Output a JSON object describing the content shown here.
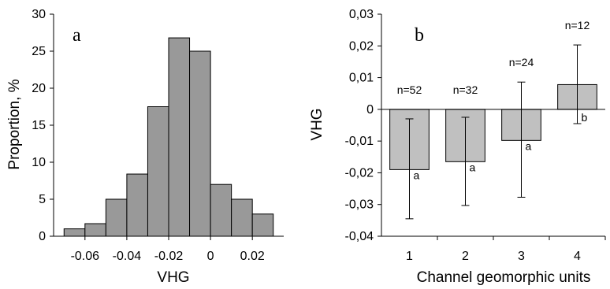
{
  "chart_data": [
    {
      "panel_label": "a",
      "type": "bar",
      "subtype": "histogram",
      "xlabel": "VHG",
      "ylabel": "Proportion, %",
      "xlim": [
        -0.075,
        0.035
      ],
      "ylim": [
        0,
        30
      ],
      "xticks": [
        -0.06,
        -0.04,
        -0.02,
        0,
        0.02
      ],
      "xtick_labels": [
        "-0.06",
        "-0.04",
        "-0.02",
        "0",
        "0.02"
      ],
      "yticks": [
        0,
        5,
        10,
        15,
        20,
        25,
        30
      ],
      "ytick_labels": [
        "0",
        "5",
        "10",
        "15",
        "20",
        "25",
        "30"
      ],
      "bin_width": 0.01,
      "bins": [
        {
          "x0": -0.07,
          "x1": -0.06,
          "value": 1
        },
        {
          "x0": -0.06,
          "x1": -0.05,
          "value": 1.7
        },
        {
          "x0": -0.05,
          "x1": -0.04,
          "value": 5
        },
        {
          "x0": -0.04,
          "x1": -0.03,
          "value": 8.4
        },
        {
          "x0": -0.03,
          "x1": -0.02,
          "value": 17.5
        },
        {
          "x0": -0.02,
          "x1": -0.01,
          "value": 26.8
        },
        {
          "x0": -0.01,
          "x1": 0,
          "value": 25
        },
        {
          "x0": 0,
          "x1": 0.01,
          "value": 7
        },
        {
          "x0": 0.01,
          "x1": 0.02,
          "value": 5
        },
        {
          "x0": 0.02,
          "x1": 0.03,
          "value": 3
        }
      ],
      "bar_color": "#999999",
      "grid": false
    },
    {
      "panel_label": "b",
      "type": "bar",
      "xlabel": "Channel geomorphic units",
      "ylabel": "VHG",
      "categories": [
        "1",
        "2",
        "3",
        "4"
      ],
      "ylim": [
        -0.04,
        0.03
      ],
      "yticks": [
        -0.04,
        -0.03,
        -0.02,
        -0.01,
        0,
        0.01,
        0.02,
        0.03
      ],
      "ytick_labels": [
        "-0,04",
        "-0,03",
        "-0,02",
        "-0,01",
        "0",
        "0,01",
        "0,02",
        "0,03"
      ],
      "values": [
        -0.019,
        -0.0165,
        -0.0098,
        0.0078
      ],
      "error_low": [
        -0.0345,
        -0.0303,
        -0.0277,
        -0.0045
      ],
      "error_high": [
        -0.003,
        -0.0025,
        0.0086,
        0.0203
      ],
      "sample_labels": [
        "n=52",
        "n=32",
        "n=24",
        "n=12"
      ],
      "group_labels": [
        "a",
        "a",
        "a",
        "b"
      ],
      "bar_color": "#c0c0c0",
      "grid": false
    }
  ]
}
